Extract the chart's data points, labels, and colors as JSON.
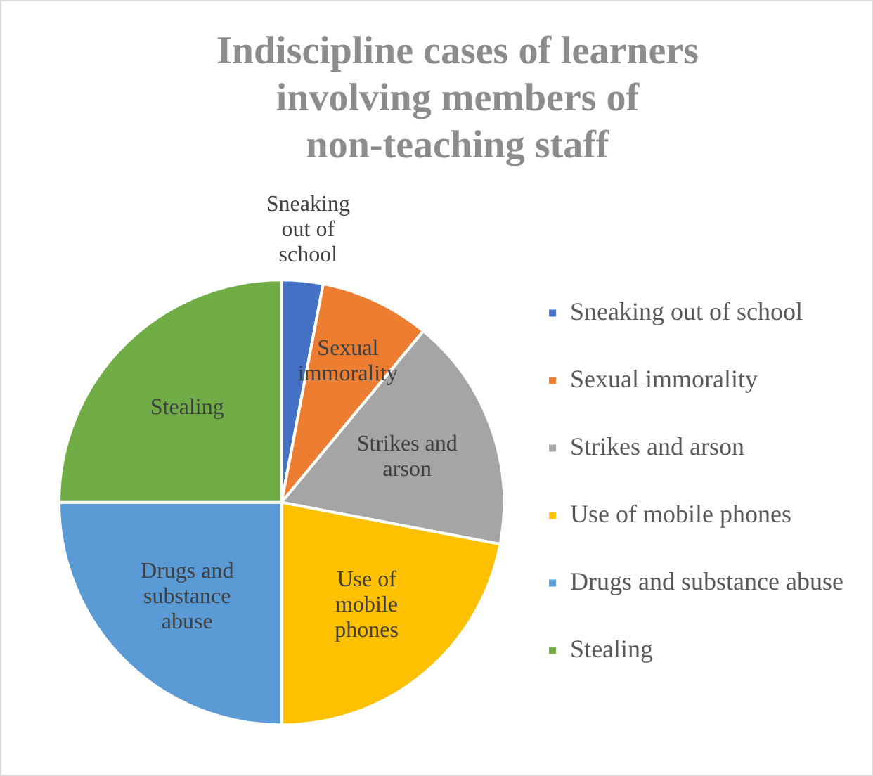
{
  "chart_data": {
    "type": "pie",
    "title": "Indiscipline cases of learners involving members of non-teaching staff",
    "categories": [
      "Sneaking out of school",
      "Sexual immorality",
      "Strikes and arson",
      "Use of mobile phones",
      "Drugs and substance abuse",
      "Stealing"
    ],
    "values": [
      3,
      8,
      17,
      22,
      25,
      25
    ],
    "colors": [
      "#4472c4",
      "#ed7d31",
      "#a5a5a5",
      "#ffc000",
      "#5b9bd5",
      "#70ad47"
    ],
    "legend": "right"
  }
}
